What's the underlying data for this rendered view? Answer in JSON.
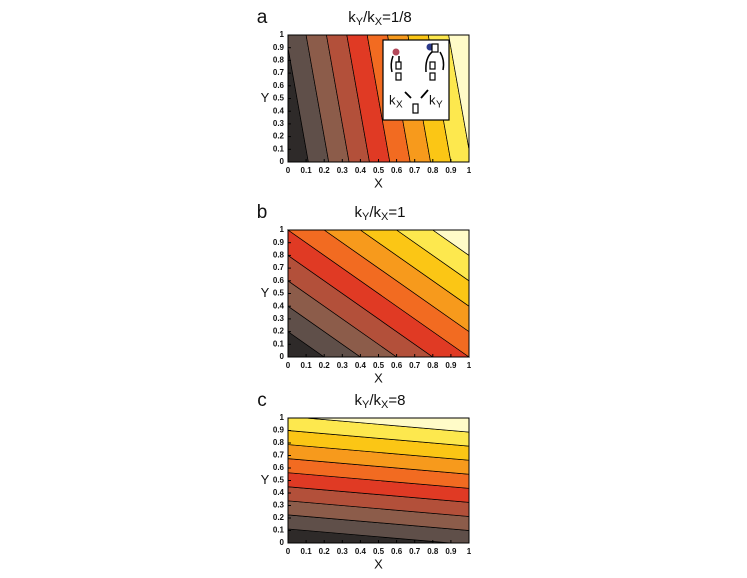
{
  "chart_data": [
    {
      "type": "contour",
      "label": "a",
      "title": [
        "k",
        "Y",
        "/k",
        "X",
        "=1/8"
      ],
      "ratio": 0.125,
      "xlabel": "X",
      "ylabel": "Y",
      "xlim": [
        0,
        1
      ],
      "ylim": [
        0,
        1
      ],
      "xticks": [
        0,
        0.1,
        0.2,
        0.3,
        0.4,
        0.5,
        0.6,
        0.7,
        0.8,
        0.9,
        1
      ],
      "yticks": [
        0,
        0.1,
        0.2,
        0.3,
        0.4,
        0.5,
        0.6,
        0.7,
        0.8,
        0.9,
        1
      ],
      "colors": [
        "#2e2a29",
        "#5f4f49",
        "#8c5c4a",
        "#b3503a",
        "#e03a24",
        "#f26b21",
        "#f79a1c",
        "#fbc615",
        "#fde84e",
        "#fffbc8"
      ],
      "inset_labels": [
        "k",
        "X",
        "k",
        "Y"
      ]
    },
    {
      "type": "contour",
      "label": "b",
      "title": [
        "k",
        "Y",
        "/k",
        "X",
        "=1"
      ],
      "ratio": 1,
      "xlabel": "X",
      "ylabel": "Y",
      "xlim": [
        0,
        1
      ],
      "ylim": [
        0,
        1
      ],
      "xticks": [
        0,
        0.1,
        0.2,
        0.3,
        0.4,
        0.5,
        0.6,
        0.7,
        0.8,
        0.9,
        1
      ],
      "yticks": [
        0,
        0.1,
        0.2,
        0.3,
        0.4,
        0.5,
        0.6,
        0.7,
        0.8,
        0.9,
        1
      ],
      "colors": [
        "#2e2a29",
        "#5f4f49",
        "#8c5c4a",
        "#b3503a",
        "#e03a24",
        "#f26b21",
        "#f79a1c",
        "#fbc615",
        "#fde84e",
        "#fffbc8"
      ]
    },
    {
      "type": "contour",
      "label": "c",
      "title": [
        "k",
        "Y",
        "/k",
        "X",
        "=8"
      ],
      "ratio": 8,
      "xlabel": "X",
      "ylabel": "Y",
      "xlim": [
        0,
        1
      ],
      "ylim": [
        0,
        1
      ],
      "xticks": [
        0,
        0.1,
        0.2,
        0.3,
        0.4,
        0.5,
        0.6,
        0.7,
        0.8,
        0.9,
        1
      ],
      "yticks": [
        0,
        0.1,
        0.2,
        0.3,
        0.4,
        0.5,
        0.6,
        0.7,
        0.8,
        0.9,
        1
      ],
      "colors": [
        "#2e2a29",
        "#5f4f49",
        "#8c5c4a",
        "#b3503a",
        "#e03a24",
        "#f26b21",
        "#f79a1c",
        "#fbc615",
        "#fde84e",
        "#fffbc8"
      ]
    }
  ]
}
